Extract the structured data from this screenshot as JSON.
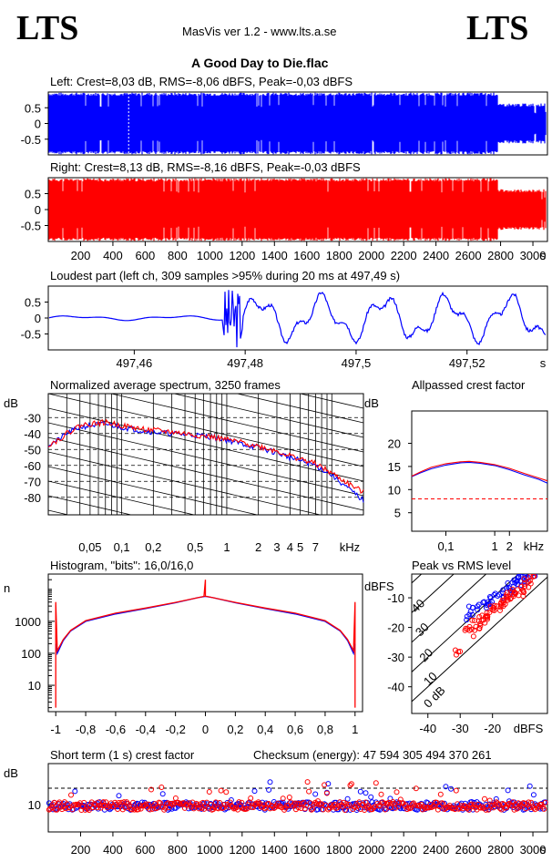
{
  "header": {
    "logo_left": "LTS",
    "logo_right": "LTS",
    "app_version": "MasVis ver 1.2 - www.lts.a.se",
    "track_title": "A Good Day to Die.flac"
  },
  "colors": {
    "left": "#0000ff",
    "right": "#ff0000",
    "grid": "#000000"
  },
  "chart_data": [
    {
      "type": "area",
      "name": "left-waveform",
      "title": "Left: Crest=8,03 dB, RMS=-8,06 dBFS, Peak=-0,03 dBFS",
      "yticks": [
        "0.5",
        "0",
        "-0.5"
      ],
      "ylim": [
        -1,
        1
      ],
      "xlim": [
        0,
        3090
      ]
    },
    {
      "type": "area",
      "name": "right-waveform",
      "title": "Right: Crest=8,13 dB, RMS=-8,16 dBFS, Peak=-0,03 dBFS",
      "yticks": [
        "0.5",
        "0",
        "-0.5"
      ],
      "xticks": [
        "200",
        "400",
        "600",
        "800",
        "1000",
        "1200",
        "1400",
        "1600",
        "1800",
        "2000",
        "2200",
        "2400",
        "2600",
        "2800",
        "3000"
      ],
      "xunit": "s",
      "ylim": [
        -1,
        1
      ],
      "xlim": [
        0,
        3090
      ]
    },
    {
      "type": "line",
      "name": "loudest-part",
      "title": "Loudest part (left  ch, 309 samples >95% during 20 ms at 497,49 s)",
      "yticks": [
        "0.5",
        "0",
        "-0.5"
      ],
      "xticks": [
        "497,46",
        "497,48",
        "497,5",
        "497,52"
      ],
      "xtick_values": [
        497.46,
        497.48,
        497.5,
        497.52
      ],
      "xunit": "s",
      "xlim": [
        497.4445,
        497.5345
      ],
      "ylim": [
        -1,
        1
      ]
    },
    {
      "type": "line",
      "name": "average-spectrum",
      "title": "Normalized average spectrum, 3250 frames",
      "ylabel": "dB",
      "yticks": [
        "-30",
        "-40",
        "-50",
        "-60",
        "-70",
        "-80"
      ],
      "ytick_values": [
        -30,
        -40,
        -50,
        -60,
        -70,
        -80
      ],
      "xticks": [
        "0,05",
        "0,1",
        "0,2",
        "0,5",
        "1",
        "2",
        "3",
        "4",
        "5",
        "7"
      ],
      "xtick_values": [
        0.05,
        0.1,
        0.2,
        0.5,
        1,
        2,
        3,
        4,
        5,
        7
      ],
      "xunit": "kHz",
      "xscale": "log",
      "xlim": [
        0.02,
        20
      ],
      "ylim": [
        -91,
        -15
      ],
      "series": [
        {
          "color": "#0000ff",
          "x": [
            0.02,
            0.025,
            0.03,
            0.04,
            0.05,
            0.07,
            0.1,
            0.15,
            0.2,
            0.3,
            0.5,
            0.7,
            1,
            1.5,
            2,
            3,
            4,
            5,
            7,
            10,
            14,
            20
          ],
          "y": [
            -47,
            -44,
            -40,
            -36,
            -35,
            -34,
            -36,
            -38,
            -39,
            -40,
            -41,
            -42,
            -44,
            -47,
            -49,
            -52,
            -55,
            -57,
            -60,
            -66,
            -74,
            -82
          ]
        },
        {
          "color": "#ff0000",
          "x": [
            0.02,
            0.025,
            0.03,
            0.04,
            0.05,
            0.07,
            0.1,
            0.15,
            0.2,
            0.3,
            0.5,
            0.7,
            1,
            1.5,
            2,
            3,
            4,
            5,
            7,
            10,
            14,
            20
          ],
          "y": [
            -47,
            -44,
            -40,
            -35,
            -34,
            -33,
            -35,
            -37,
            -38,
            -39,
            -41,
            -42,
            -44,
            -46,
            -48,
            -51,
            -54,
            -56,
            -59,
            -65,
            -71,
            -77
          ]
        }
      ]
    },
    {
      "type": "line",
      "name": "allpassed-crest-factor",
      "title": "Allpassed crest factor",
      "ylabel": "dB",
      "yticks": [
        "20",
        "15",
        "10",
        "5"
      ],
      "ytick_values": [
        20,
        15,
        10,
        5
      ],
      "xticks": [
        "0,1",
        "1",
        "2"
      ],
      "xtick_values": [
        0.1,
        1,
        2
      ],
      "xunit": "kHz",
      "xscale": "log",
      "xlim": [
        0.02,
        12
      ],
      "ylim": [
        1,
        27
      ],
      "reference": 8,
      "series": [
        {
          "color": "#0000ff",
          "x": [
            0.02,
            0.03,
            0.05,
            0.1,
            0.2,
            0.3,
            0.5,
            1,
            2,
            4,
            8,
            12
          ],
          "y": [
            12.8,
            13.6,
            14.5,
            15.3,
            15.8,
            15.9,
            15.7,
            15.2,
            14.3,
            13.2,
            12.2,
            11.4
          ]
        },
        {
          "color": "#ff0000",
          "x": [
            0.02,
            0.03,
            0.05,
            0.1,
            0.2,
            0.3,
            0.5,
            1,
            2,
            4,
            8,
            12
          ],
          "y": [
            12.9,
            13.8,
            14.8,
            15.6,
            16.0,
            16.1,
            15.9,
            15.4,
            14.6,
            13.5,
            12.5,
            11.9
          ]
        }
      ]
    },
    {
      "type": "line",
      "name": "histogram",
      "title": "Histogram, \"bits\": 16,0/16,0",
      "ylabel": "n",
      "yscale": "log",
      "yticks": [
        "1000",
        "100",
        "10"
      ],
      "ytick_values": [
        1000,
        100,
        10
      ],
      "xticks": [
        "-1",
        "-0,8",
        "-0,6",
        "-0,4",
        "-0,2",
        "0",
        "0,2",
        "0,4",
        "0,6",
        "0,8",
        "1"
      ],
      "xtick_values": [
        -1,
        -0.8,
        -0.6,
        -0.4,
        -0.2,
        0,
        0.2,
        0.4,
        0.6,
        0.8,
        1
      ],
      "xlim": [
        -1.05,
        1.05
      ],
      "ylim": [
        1.5,
        30000
      ],
      "series": [
        {
          "color": "#0000ff",
          "x": [
            -1,
            -0.99,
            -0.95,
            -0.9,
            -0.8,
            -0.6,
            -0.4,
            -0.2,
            -0.05,
            0,
            0.05,
            0.2,
            0.4,
            0.6,
            0.8,
            0.9,
            0.95,
            0.99,
            1
          ],
          "y": [
            200,
            100,
            250,
            500,
            1000,
            1700,
            2500,
            3800,
            5500,
            6000,
            5500,
            3800,
            2500,
            1700,
            1000,
            500,
            250,
            100,
            200
          ]
        },
        {
          "color": "#ff0000",
          "x": [
            -1,
            -1,
            -0.99,
            -0.95,
            -0.9,
            -0.8,
            -0.6,
            -0.4,
            -0.2,
            -0.01,
            0,
            0,
            0.01,
            0.2,
            0.4,
            0.6,
            0.8,
            0.9,
            0.95,
            0.99,
            1,
            1
          ],
          "y": [
            2,
            4000,
            120,
            270,
            520,
            1050,
            1800,
            2600,
            3900,
            6000,
            20000,
            6000,
            6000,
            3900,
            2600,
            1800,
            1050,
            520,
            270,
            120,
            4000,
            2
          ]
        }
      ]
    },
    {
      "type": "scatter",
      "name": "peak-vs-rms",
      "title": "Peak vs RMS level",
      "ylabel": "dBFS",
      "xlabel": "dBFS",
      "yticks": [
        "-10",
        "-20",
        "-30",
        "-40"
      ],
      "ytick_values": [
        -10,
        -20,
        -30,
        -40
      ],
      "xticks": [
        "-40",
        "-30",
        "-20"
      ],
      "xtick_values": [
        -40,
        -30,
        -20
      ],
      "xlim": [
        -45,
        -3
      ],
      "ylim": [
        -49,
        -2
      ],
      "crest_lines": [
        "40",
        "30",
        "20",
        "10",
        "0 dB"
      ],
      "series": [
        {
          "color": "#0000ff",
          "x": [
            -27,
            -24,
            -22,
            -20,
            -18,
            -16,
            -14,
            -12,
            -10,
            -9,
            -8,
            -26,
            -21,
            -15,
            -11
          ],
          "y": [
            -16,
            -13,
            -12,
            -10,
            -9,
            -8,
            -6,
            -5,
            -4,
            -3,
            -3,
            -14,
            -11,
            -7,
            -4
          ]
        },
        {
          "color": "#ff0000",
          "x": [
            -30,
            -27,
            -25,
            -23,
            -21,
            -19,
            -17,
            -15,
            -13,
            -11,
            -10,
            -9,
            -8,
            -28,
            -22,
            -18,
            -14,
            -12,
            -24,
            -20,
            -16
          ],
          "y": [
            -28,
            -22,
            -18,
            -17,
            -15,
            -13,
            -12,
            -10,
            -8,
            -7,
            -6,
            -5,
            -4,
            -20,
            -16,
            -12,
            -9,
            -8,
            -19,
            -14,
            -11
          ]
        }
      ]
    },
    {
      "type": "scatter",
      "name": "short-term-crest",
      "title": "Short term (1 s) crest factor",
      "checksum": "Checksum (energy):  47 594 305 494 370 261",
      "ylabel": "dB",
      "yticks": [
        "10"
      ],
      "ytick_values": [
        10
      ],
      "xticks": [
        "200",
        "400",
        "600",
        "800",
        "1000",
        "1200",
        "1400",
        "1600",
        "1800",
        "2000",
        "2200",
        "2400",
        "2600",
        "2800",
        "3000"
      ],
      "xunit": "s",
      "xlim": [
        0,
        3090
      ],
      "ylim": [
        0,
        25
      ],
      "reference": 16
    }
  ]
}
